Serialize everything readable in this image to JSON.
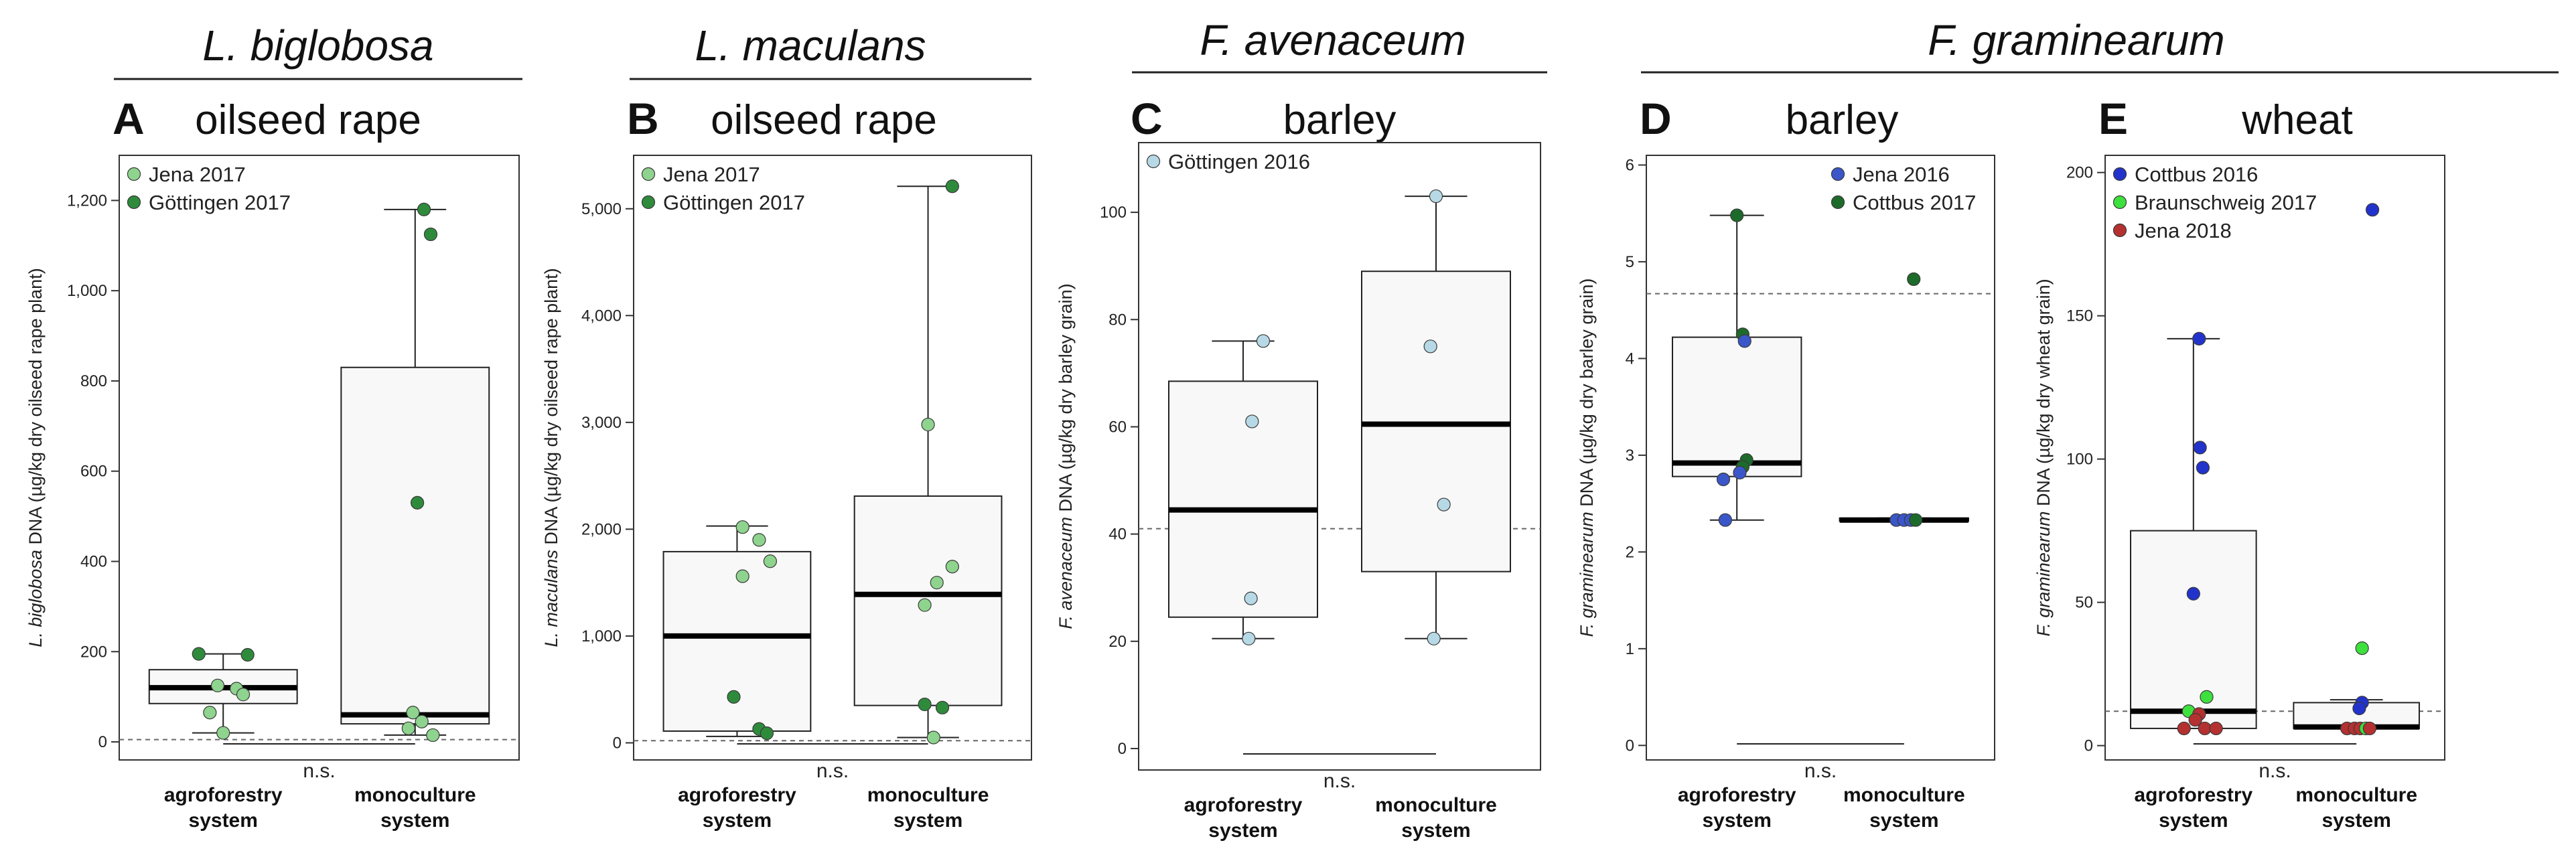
{
  "figure_groups": [
    {
      "title": "L. biglobosa",
      "panels": [
        "A"
      ]
    },
    {
      "title": "L. maculans",
      "panels": [
        "B"
      ]
    },
    {
      "title": "F. avenaceum",
      "panels": [
        "C"
      ]
    },
    {
      "title": "F. graminearum",
      "panels": [
        "D",
        "E"
      ]
    }
  ],
  "colors": {
    "jena_2017": "#8ed38e",
    "gottingen_2017": "#2e8b3c",
    "gottingen_2016": "#b7d9e6",
    "jena_2016": "#3a56c9",
    "cottbus_2017": "#1d6b2a",
    "cottbus_2016": "#2233cc",
    "braunschweig_2017": "#3ee03e",
    "jena_2018": "#b53030",
    "box_fill": "#f8f8f8",
    "axis": "#333333"
  },
  "chart_data": [
    {
      "id": "A",
      "type": "box",
      "letter": "A",
      "crop": "oilseed rape",
      "ylabel_italic": "L. biglobosa",
      "ylabel_rest": " DNA (µg/kg dry oilseed rape plant)",
      "categories": [
        "agroforestry system",
        "monoculture system"
      ],
      "category_lines": [
        [
          "agroforestry",
          "system"
        ],
        [
          "monoculture",
          "system"
        ]
      ],
      "ylim": [
        -40,
        1300
      ],
      "yticks": [
        0,
        200,
        400,
        600,
        800,
        1000,
        1200
      ],
      "ytick_labels": [
        "0",
        "200",
        "400",
        "600",
        "800",
        "1,000",
        "1,200"
      ],
      "threshold": 5,
      "significance": "n.s.",
      "legend": [
        {
          "label": "Jena 2017",
          "color_key": "jena_2017"
        },
        {
          "label": "Göttingen 2017",
          "color_key": "gottingen_2017"
        }
      ],
      "boxes": [
        {
          "q1": 85,
          "median": 120,
          "q3": 160,
          "whisker_low": 20,
          "whisker_high": 195
        },
        {
          "q1": 40,
          "median": 60,
          "q3": 830,
          "whisker_low": 15,
          "whisker_high": 1180
        }
      ],
      "points": [
        {
          "cat": 0,
          "value": 195,
          "series": 1,
          "jitter": -0.22
        },
        {
          "cat": 0,
          "value": 193,
          "series": 1,
          "jitter": 0.22
        },
        {
          "cat": 0,
          "value": 125,
          "series": 0,
          "jitter": -0.05
        },
        {
          "cat": 0,
          "value": 118,
          "series": 0,
          "jitter": 0.12
        },
        {
          "cat": 0,
          "value": 105,
          "series": 0,
          "jitter": 0.18
        },
        {
          "cat": 0,
          "value": 65,
          "series": 0,
          "jitter": -0.12
        },
        {
          "cat": 0,
          "value": 20,
          "series": 0,
          "jitter": 0.0
        },
        {
          "cat": 1,
          "value": 1180,
          "series": 1,
          "jitter": 0.08
        },
        {
          "cat": 1,
          "value": 1125,
          "series": 1,
          "jitter": 0.14
        },
        {
          "cat": 1,
          "value": 530,
          "series": 1,
          "jitter": 0.02
        },
        {
          "cat": 1,
          "value": 65,
          "series": 0,
          "jitter": -0.02
        },
        {
          "cat": 1,
          "value": 45,
          "series": 0,
          "jitter": 0.06
        },
        {
          "cat": 1,
          "value": 30,
          "series": 0,
          "jitter": -0.06
        },
        {
          "cat": 1,
          "value": 15,
          "series": 0,
          "jitter": 0.16
        }
      ]
    },
    {
      "id": "B",
      "type": "box",
      "letter": "B",
      "crop": "oilseed rape",
      "ylabel_italic": "L. maculans",
      "ylabel_rest": " DNA (µg/kg dry oilseed rape plant)",
      "categories": [
        "agroforestry system",
        "monoculture system"
      ],
      "category_lines": [
        [
          "agroforestry",
          "system"
        ],
        [
          "monoculture",
          "system"
        ]
      ],
      "ylim": [
        -160,
        5500
      ],
      "yticks": [
        0,
        1000,
        2000,
        3000,
        4000,
        5000
      ],
      "ytick_labels": [
        "0",
        "1,000",
        "2,000",
        "3,000",
        "4,000",
        "5,000"
      ],
      "threshold": 20,
      "significance": "n.s.",
      "legend": [
        {
          "label": "Jena 2017",
          "color_key": "jena_2017"
        },
        {
          "label": "Göttingen 2017",
          "color_key": "gottingen_2017"
        }
      ],
      "boxes": [
        {
          "q1": 110,
          "median": 1000,
          "q3": 1790,
          "whisker_low": 60,
          "whisker_high": 2030
        },
        {
          "q1": 350,
          "median": 1390,
          "q3": 2310,
          "whisker_low": 50,
          "whisker_high": 5210
        }
      ],
      "points": [
        {
          "cat": 0,
          "value": 2020,
          "series": 0,
          "jitter": 0.05
        },
        {
          "cat": 0,
          "value": 1900,
          "series": 0,
          "jitter": 0.2
        },
        {
          "cat": 0,
          "value": 1700,
          "series": 0,
          "jitter": 0.3
        },
        {
          "cat": 0,
          "value": 1560,
          "series": 0,
          "jitter": 0.05
        },
        {
          "cat": 0,
          "value": 430,
          "series": 1,
          "jitter": -0.03
        },
        {
          "cat": 0,
          "value": 130,
          "series": 1,
          "jitter": 0.2
        },
        {
          "cat": 0,
          "value": 90,
          "series": 1,
          "jitter": 0.27
        },
        {
          "cat": 1,
          "value": 5210,
          "series": 1,
          "jitter": 0.22
        },
        {
          "cat": 1,
          "value": 2980,
          "series": 0,
          "jitter": 0.0
        },
        {
          "cat": 1,
          "value": 1650,
          "series": 0,
          "jitter": 0.22
        },
        {
          "cat": 1,
          "value": 1500,
          "series": 0,
          "jitter": 0.08
        },
        {
          "cat": 1,
          "value": 1290,
          "series": 0,
          "jitter": -0.03
        },
        {
          "cat": 1,
          "value": 360,
          "series": 1,
          "jitter": -0.03
        },
        {
          "cat": 1,
          "value": 330,
          "series": 1,
          "jitter": 0.13
        },
        {
          "cat": 1,
          "value": 50,
          "series": 0,
          "jitter": 0.05
        }
      ]
    },
    {
      "id": "C",
      "type": "box",
      "letter": "C",
      "crop": "barley",
      "ylabel_italic": "F. avenaceum",
      "ylabel_rest": " DNA (µg/kg dry barley grain)",
      "categories": [
        "agroforestry system",
        "monoculture system"
      ],
      "category_lines": [
        [
          "agroforestry",
          "system"
        ],
        [
          "monoculture",
          "system"
        ]
      ],
      "ylim": [
        -4,
        113
      ],
      "yticks": [
        0,
        20,
        40,
        60,
        80,
        100
      ],
      "ytick_labels": [
        "0",
        "20",
        "40",
        "60",
        "80",
        "100"
      ],
      "threshold": 41,
      "significance": "n.s.",
      "legend": [
        {
          "label": "Göttingen 2016",
          "color_key": "gottingen_2016"
        }
      ],
      "boxes": [
        {
          "q1": 24.5,
          "median": 44.5,
          "q3": 68.5,
          "whisker_low": 20.5,
          "whisker_high": 76
        },
        {
          "q1": 33,
          "median": 60.5,
          "q3": 89,
          "whisker_low": 20.5,
          "whisker_high": 103
        }
      ],
      "points": [
        {
          "cat": 0,
          "value": 76,
          "series": 0,
          "jitter": 0.18
        },
        {
          "cat": 0,
          "value": 61,
          "series": 0,
          "jitter": 0.08
        },
        {
          "cat": 0,
          "value": 28,
          "series": 0,
          "jitter": 0.07
        },
        {
          "cat": 0,
          "value": 20.5,
          "series": 0,
          "jitter": 0.05
        },
        {
          "cat": 1,
          "value": 103,
          "series": 0,
          "jitter": 0.0
        },
        {
          "cat": 1,
          "value": 75,
          "series": 0,
          "jitter": -0.05
        },
        {
          "cat": 1,
          "value": 45.5,
          "series": 0,
          "jitter": 0.07
        },
        {
          "cat": 1,
          "value": 20.5,
          "series": 0,
          "jitter": -0.02
        }
      ]
    },
    {
      "id": "D",
      "type": "box",
      "letter": "D",
      "crop": "barley",
      "ylabel_italic": "F. graminearum",
      "ylabel_rest": " DNA (µg/kg dry barley grain)",
      "categories": [
        "agroforestry system",
        "monoculture system"
      ],
      "category_lines": [
        [
          "agroforestry",
          "system"
        ],
        [
          "monoculture",
          "system"
        ]
      ],
      "ylim": [
        -0.15,
        6.1
      ],
      "yticks": [
        0,
        1,
        2,
        3,
        4,
        5,
        6
      ],
      "ytick_labels": [
        "0",
        "1",
        "2",
        "3",
        "4",
        "5",
        "6"
      ],
      "threshold": 4.67,
      "significance": "n.s.",
      "legend": [
        {
          "label": "Jena 2016",
          "color_key": "jena_2016"
        },
        {
          "label": "Cottbus 2017",
          "color_key": "cottbus_2017"
        }
      ],
      "boxes": [
        {
          "q1": 2.78,
          "median": 2.92,
          "q3": 4.22,
          "whisker_low": 2.33,
          "whisker_high": 5.48
        },
        {
          "q1": 2.32,
          "median": 2.33,
          "q3": 2.35,
          "whisker_low": 2.32,
          "whisker_high": 2.35
        }
      ],
      "points": [
        {
          "cat": 0,
          "value": 5.48,
          "series": 1,
          "jitter": 0.0
        },
        {
          "cat": 0,
          "value": 4.25,
          "series": 1,
          "jitter": 0.06
        },
        {
          "cat": 0,
          "value": 4.18,
          "series": 0,
          "jitter": 0.08
        },
        {
          "cat": 0,
          "value": 2.95,
          "series": 1,
          "jitter": 0.1
        },
        {
          "cat": 0,
          "value": 2.88,
          "series": 1,
          "jitter": 0.06
        },
        {
          "cat": 0,
          "value": 2.82,
          "series": 0,
          "jitter": 0.03
        },
        {
          "cat": 0,
          "value": 2.75,
          "series": 0,
          "jitter": -0.14
        },
        {
          "cat": 0,
          "value": 2.33,
          "series": 0,
          "jitter": -0.12
        },
        {
          "cat": 1,
          "value": 4.82,
          "series": 1,
          "jitter": 0.1
        },
        {
          "cat": 1,
          "value": 2.33,
          "series": 0,
          "jitter": -0.08
        },
        {
          "cat": 1,
          "value": 2.33,
          "series": 0,
          "jitter": 0.0
        },
        {
          "cat": 1,
          "value": 2.33,
          "series": 0,
          "jitter": 0.07
        },
        {
          "cat": 1,
          "value": 2.33,
          "series": 1,
          "jitter": 0.12
        }
      ]
    },
    {
      "id": "E",
      "type": "box",
      "letter": "E",
      "crop": "wheat",
      "ylabel_italic": "F. graminearum",
      "ylabel_rest": " DNA (µg/kg dry wheat grain)",
      "categories": [
        "agroforestry system",
        "monoculture system"
      ],
      "category_lines": [
        [
          "agroforestry",
          "system"
        ],
        [
          "monoculture",
          "system"
        ]
      ],
      "ylim": [
        -5,
        206
      ],
      "yticks": [
        0,
        50,
        100,
        150,
        200
      ],
      "ytick_labels": [
        "0",
        "50",
        "100",
        "150",
        "200"
      ],
      "threshold": 12,
      "significance": "n.s.",
      "legend": [
        {
          "label": "Cottbus 2016",
          "color_key": "cottbus_2016"
        },
        {
          "label": "Braunschweig 2017",
          "color_key": "braunschweig_2017"
        },
        {
          "label": "Jena 2018",
          "color_key": "jena_2018"
        }
      ],
      "boxes": [
        {
          "q1": 6,
          "median": 12,
          "q3": 75,
          "whisker_low": 6,
          "whisker_high": 142
        },
        {
          "q1": 6,
          "median": 6.5,
          "q3": 15,
          "whisker_low": 6,
          "whisker_high": 16
        }
      ],
      "points": [
        {
          "cat": 0,
          "value": 142,
          "series": 0,
          "jitter": 0.06
        },
        {
          "cat": 0,
          "value": 104,
          "series": 0,
          "jitter": 0.07
        },
        {
          "cat": 0,
          "value": 97,
          "series": 0,
          "jitter": 0.1
        },
        {
          "cat": 0,
          "value": 53,
          "series": 0,
          "jitter": 0.0
        },
        {
          "cat": 0,
          "value": 17,
          "series": 1,
          "jitter": 0.14
        },
        {
          "cat": 0,
          "value": 12,
          "series": 1,
          "jitter": -0.05
        },
        {
          "cat": 0,
          "value": 11,
          "series": 2,
          "jitter": 0.06
        },
        {
          "cat": 0,
          "value": 9,
          "series": 2,
          "jitter": 0.02
        },
        {
          "cat": 0,
          "value": 6,
          "series": 2,
          "jitter": -0.1
        },
        {
          "cat": 0,
          "value": 6,
          "series": 2,
          "jitter": 0.12
        },
        {
          "cat": 0,
          "value": 6,
          "series": 2,
          "jitter": 0.24
        },
        {
          "cat": 1,
          "value": 187,
          "series": 0,
          "jitter": 0.17
        },
        {
          "cat": 1,
          "value": 34,
          "series": 1,
          "jitter": 0.06
        },
        {
          "cat": 1,
          "value": 15,
          "series": 0,
          "jitter": 0.06
        },
        {
          "cat": 1,
          "value": 13,
          "series": 0,
          "jitter": 0.03
        },
        {
          "cat": 1,
          "value": 6,
          "series": 2,
          "jitter": -0.1
        },
        {
          "cat": 1,
          "value": 6,
          "series": 2,
          "jitter": -0.02
        },
        {
          "cat": 1,
          "value": 6,
          "series": 2,
          "jitter": 0.04
        },
        {
          "cat": 1,
          "value": 6,
          "series": 1,
          "jitter": 0.1
        },
        {
          "cat": 1,
          "value": 6,
          "series": 2,
          "jitter": 0.14
        }
      ]
    }
  ]
}
